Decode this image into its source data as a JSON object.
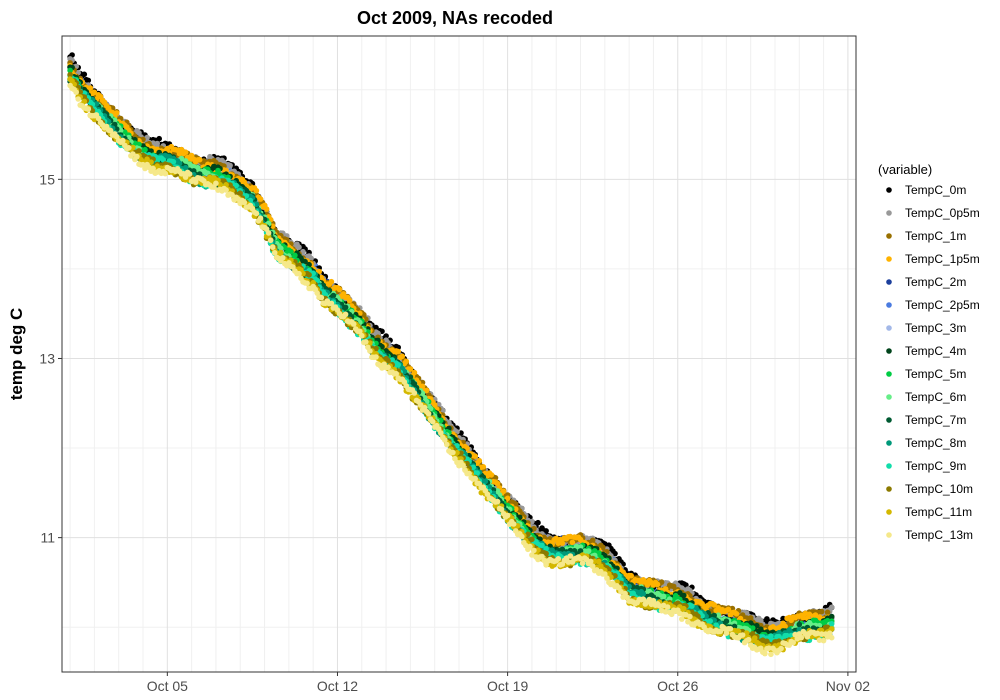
{
  "chart_data": {
    "type": "scatter",
    "title": "Oct 2009, NAs recoded",
    "xlabel": "",
    "ylabel": "temp deg C",
    "x_range": [
      "2009-09-30T16:00",
      "2009-11-02T08:00"
    ],
    "ylim": [
      9.5,
      16.6
    ],
    "x_ticks": [
      {
        "date": "2009-10-05",
        "label": "Oct 05"
      },
      {
        "date": "2009-10-12",
        "label": "Oct 12"
      },
      {
        "date": "2009-10-19",
        "label": "Oct 19"
      },
      {
        "date": "2009-10-26",
        "label": "Oct 26"
      },
      {
        "date": "2009-11-02",
        "label": "Nov 02"
      }
    ],
    "y_ticks": [
      11,
      13,
      15
    ],
    "grid": true,
    "legend": {
      "title": "(variable)",
      "position": "right",
      "entries": [
        {
          "label": "TempC_0m",
          "color": "#000000"
        },
        {
          "label": "TempC_0p5m",
          "color": "#999999"
        },
        {
          "label": "TempC_1m",
          "color": "#997000"
        },
        {
          "label": "TempC_1p5m",
          "color": "#ffb300"
        },
        {
          "label": "TempC_2m",
          "color": "#1c3f9c"
        },
        {
          "label": "TempC_2p5m",
          "color": "#4a7be0"
        },
        {
          "label": "TempC_3m",
          "color": "#a3b8e8"
        },
        {
          "label": "TempC_4m",
          "color": "#00441b"
        },
        {
          "label": "TempC_5m",
          "color": "#00cc44"
        },
        {
          "label": "TempC_6m",
          "color": "#66ee88"
        },
        {
          "label": "TempC_7m",
          "color": "#005a32"
        },
        {
          "label": "TempC_8m",
          "color": "#00997a"
        },
        {
          "label": "TempC_9m",
          "color": "#11ddaa"
        },
        {
          "label": "TempC_10m",
          "color": "#8c7a00"
        },
        {
          "label": "TempC_11m",
          "color": "#d4b800"
        },
        {
          "label": "TempC_13m",
          "color": "#f5e88a"
        }
      ]
    },
    "trend": {
      "x": [
        "2009-10-01T00:00",
        "2009-10-01T12:00",
        "2009-10-02T00:00",
        "2009-10-02T12:00",
        "2009-10-03T00:00",
        "2009-10-03T12:00",
        "2009-10-04T00:00",
        "2009-10-04T12:00",
        "2009-10-05T00:00",
        "2009-10-05T12:00",
        "2009-10-06T00:00",
        "2009-10-06T12:00",
        "2009-10-07T00:00",
        "2009-10-07T12:00",
        "2009-10-08T00:00",
        "2009-10-08T12:00",
        "2009-10-09T00:00",
        "2009-10-09T12:00",
        "2009-10-10T00:00",
        "2009-10-10T12:00",
        "2009-10-11T00:00",
        "2009-10-11T12:00",
        "2009-10-12T00:00",
        "2009-10-12T12:00",
        "2009-10-13T00:00",
        "2009-10-13T12:00",
        "2009-10-14T00:00",
        "2009-10-14T12:00",
        "2009-10-15T00:00",
        "2009-10-15T12:00",
        "2009-10-16T00:00",
        "2009-10-16T12:00",
        "2009-10-17T00:00",
        "2009-10-17T12:00",
        "2009-10-18T00:00",
        "2009-10-18T12:00",
        "2009-10-19T00:00",
        "2009-10-19T12:00",
        "2009-10-20T00:00",
        "2009-10-20T12:00",
        "2009-10-21T00:00",
        "2009-10-21T12:00",
        "2009-10-22T00:00",
        "2009-10-22T12:00",
        "2009-10-23T00:00",
        "2009-10-23T12:00",
        "2009-10-24T00:00",
        "2009-10-24T12:00",
        "2009-10-25T00:00",
        "2009-10-25T12:00",
        "2009-10-26T00:00",
        "2009-10-26T12:00",
        "2009-10-27T00:00",
        "2009-10-27T12:00",
        "2009-10-28T00:00",
        "2009-10-28T12:00",
        "2009-10-29T00:00",
        "2009-10-29T12:00",
        "2009-10-30T00:00",
        "2009-10-30T12:00",
        "2009-10-31T00:00",
        "2009-10-31T12:00",
        "2009-11-01T00:00",
        "2009-11-01T08:00"
      ],
      "y": [
        16.2,
        16.0,
        15.85,
        15.7,
        15.55,
        15.4,
        15.3,
        15.25,
        15.25,
        15.2,
        15.1,
        15.05,
        15.05,
        15.0,
        14.9,
        14.8,
        14.55,
        14.25,
        14.15,
        14.05,
        13.95,
        13.75,
        13.65,
        13.5,
        13.35,
        13.15,
        13.05,
        12.95,
        12.75,
        12.55,
        12.35,
        12.15,
        12.0,
        11.85,
        11.65,
        11.5,
        11.3,
        11.15,
        11.0,
        10.9,
        10.85,
        10.85,
        10.85,
        10.8,
        10.75,
        10.6,
        10.45,
        10.4,
        10.35,
        10.3,
        10.3,
        10.25,
        10.15,
        10.1,
        10.05,
        10.0,
        9.95,
        9.9,
        9.9,
        9.95,
        10.0,
        10.0,
        10.0,
        10.05
      ]
    }
  }
}
